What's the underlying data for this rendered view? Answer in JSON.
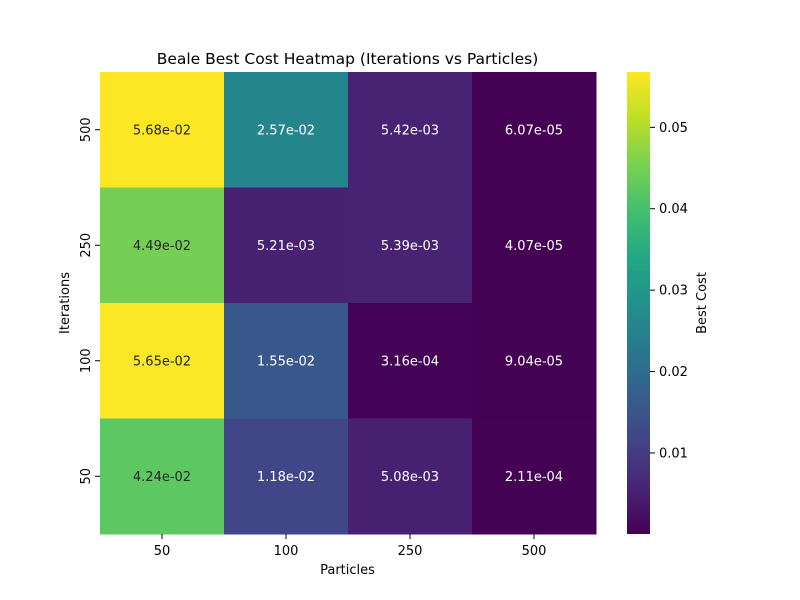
{
  "chart_data": {
    "type": "heatmap",
    "title": "Beale Best Cost Heatmap (Iterations vs Particles)",
    "xlabel": "Particles",
    "ylabel": "Iterations",
    "x_categories": [
      "50",
      "100",
      "250",
      "500"
    ],
    "y_categories": [
      "500",
      "250",
      "100",
      "50"
    ],
    "values": [
      [
        0.0568,
        0.0257,
        0.00542,
        6.07e-05
      ],
      [
        0.0449,
        0.00521,
        0.00539,
        4.07e-05
      ],
      [
        0.0565,
        0.0155,
        0.000316,
        9.04e-05
      ],
      [
        0.0424,
        0.0118,
        0.00508,
        0.000211
      ]
    ],
    "cell_labels": [
      [
        "5.68e-02",
        "2.57e-02",
        "5.42e-03",
        "6.07e-05"
      ],
      [
        "4.49e-02",
        "5.21e-03",
        "5.39e-03",
        "4.07e-05"
      ],
      [
        "5.65e-02",
        "1.55e-02",
        "3.16e-04",
        "9.04e-05"
      ],
      [
        "4.24e-02",
        "1.18e-02",
        "5.08e-03",
        "2.11e-04"
      ]
    ],
    "colorbar": {
      "label": "Best Cost",
      "colormap": "viridis",
      "range": [
        4.07e-05,
        0.0568
      ],
      "ticks": [
        0.01,
        0.02,
        0.03,
        0.04,
        0.05
      ],
      "tick_labels": [
        "0.01",
        "0.02",
        "0.03",
        "0.04",
        "0.05"
      ]
    },
    "grid": false
  }
}
